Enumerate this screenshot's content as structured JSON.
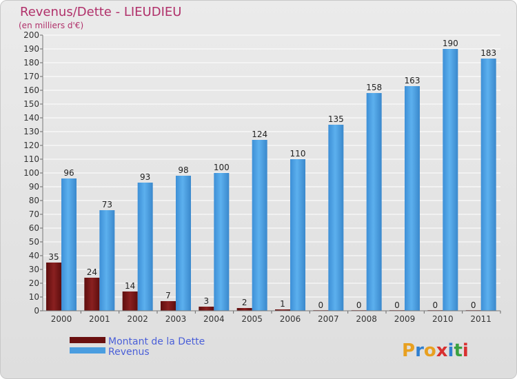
{
  "chart_data": {
    "type": "bar",
    "title": "Revenus/Dette - LIEUDIEU",
    "subtitle": "(en milliers d'€)",
    "categories": [
      "2000",
      "2001",
      "2002",
      "2003",
      "2004",
      "2005",
      "2006",
      "2007",
      "2008",
      "2009",
      "2010",
      "2011"
    ],
    "series": [
      {
        "name": "Montant de la Dette",
        "color": "#7a1515",
        "values": [
          35,
          24,
          14,
          7,
          3,
          2,
          1,
          0,
          0,
          0,
          0,
          0
        ]
      },
      {
        "name": "Revenus",
        "color": "#4a9de0",
        "values": [
          96,
          73,
          93,
          98,
          100,
          124,
          110,
          135,
          158,
          163,
          190,
          183
        ]
      }
    ],
    "ylim": [
      0,
      200
    ],
    "yticks": [
      0,
      10,
      20,
      30,
      40,
      50,
      60,
      70,
      80,
      90,
      100,
      110,
      120,
      130,
      140,
      150,
      160,
      170,
      180,
      190,
      200
    ],
    "grid": true,
    "legend": "bottom-left",
    "logo": "Proxiti",
    "logo_colors": [
      "#e8a020",
      "#2f7fd0",
      "#e8a020",
      "#d83030",
      "#2f7fd0",
      "#3aa040",
      "#d83030"
    ]
  }
}
